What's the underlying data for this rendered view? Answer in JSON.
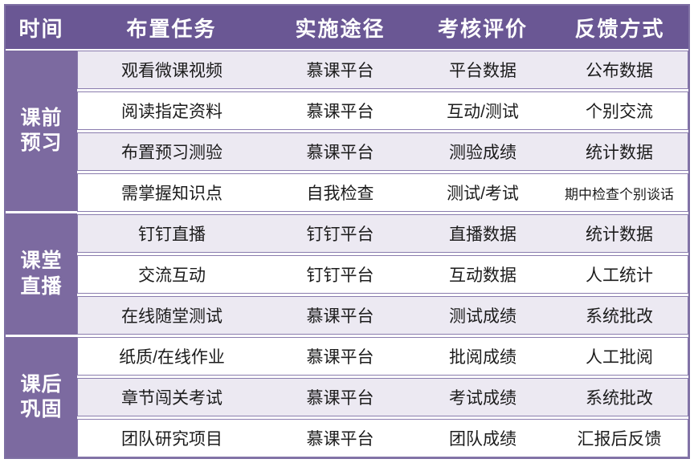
{
  "palette": {
    "header_bg": "#6a5794",
    "sidebar_bg": "#7c6aa0",
    "row_alt_bg": "#ece9f2",
    "row_bg": "#ffffff",
    "border": "#8a7cae",
    "header_text": "#ffffff",
    "body_text": "#1c1c1c"
  },
  "table": {
    "headers": [
      "时间",
      "布置任务",
      "实施途径",
      "考核评价",
      "反馈方式"
    ],
    "groups": [
      {
        "label": "课前预习",
        "lines": [
          "课前",
          "预习"
        ],
        "row_span": 4
      },
      {
        "label": "课堂直播",
        "lines": [
          "课堂",
          "直播"
        ],
        "row_span": 3
      },
      {
        "label": "课后巩固",
        "lines": [
          "课后",
          "巩固"
        ],
        "row_span": 3
      }
    ],
    "rows": [
      {
        "task": "观看微课视频",
        "channel": "慕课平台",
        "assessment": "平台数据",
        "feedback": "公布数据"
      },
      {
        "task": "阅读指定资料",
        "channel": "慕课平台",
        "assessment": "互动/测试",
        "feedback": "个别交流"
      },
      {
        "task": "布置预习测验",
        "channel": "慕课平台",
        "assessment": "测验成绩",
        "feedback": "统计数据"
      },
      {
        "task": "需掌握知识点",
        "channel": "自我检查",
        "assessment": "测试/考试",
        "feedback": "期中检查个别谈话"
      },
      {
        "task": "钉钉直播",
        "channel": "钉钉平台",
        "assessment": "直播数据",
        "feedback": "统计数据"
      },
      {
        "task": "交流互动",
        "channel": "钉钉平台",
        "assessment": "互动数据",
        "feedback": "人工统计"
      },
      {
        "task": "在线随堂测试",
        "channel": "慕课平台",
        "assessment": "测试成绩",
        "feedback": "系统批改"
      },
      {
        "task": "纸质/在线作业",
        "channel": "慕课平台",
        "assessment": "批阅成绩",
        "feedback": "人工批阅"
      },
      {
        "task": "章节闯关考试",
        "channel": "慕课平台",
        "assessment": "考试成绩",
        "feedback": "系统批改"
      },
      {
        "task": "团队研究项目",
        "channel": "慕课平台",
        "assessment": "团队成绩",
        "feedback": "汇报后反馈"
      }
    ]
  }
}
